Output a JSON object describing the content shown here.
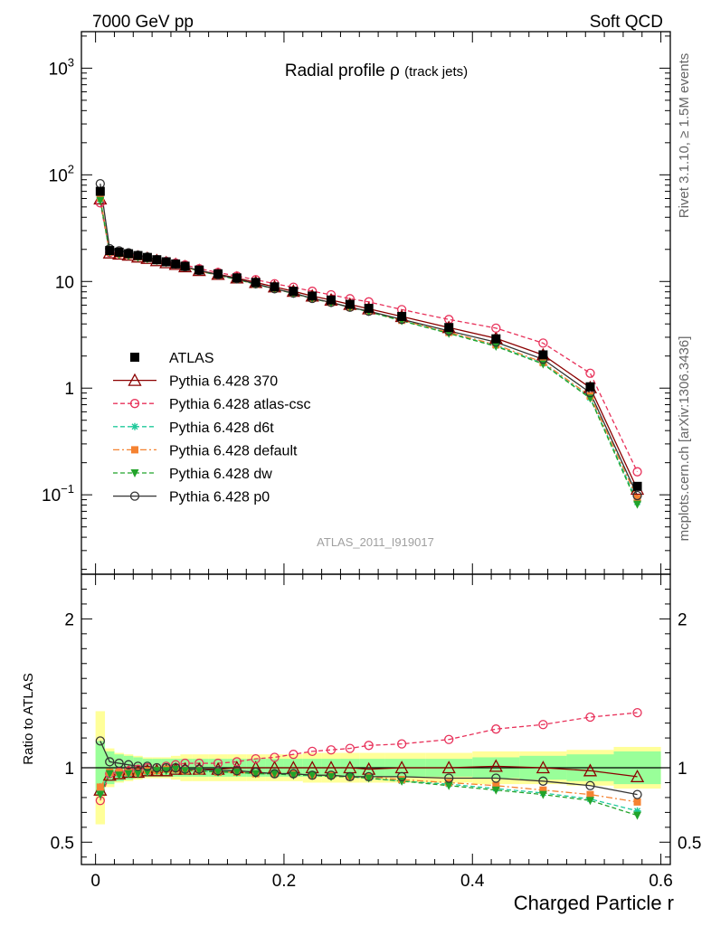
{
  "header": {
    "left": "7000 GeV pp",
    "right": "Soft QCD"
  },
  "side_labels": {
    "rivet": "Rivet 3.1.10, ≥ 1.5M events",
    "mcplots": "mcplots.cern.ch [arXiv:1306.3436]"
  },
  "chart_data": [
    {
      "type": "line",
      "panel": "main",
      "title": "Radial profile",
      "title_symbol": "ρ",
      "title_suffix": "(track jets)",
      "watermark": "ATLAS_2011_I919017",
      "yscale": "log",
      "ylim": [
        0.018,
        2200
      ],
      "xlim": [
        -0.015,
        0.61
      ],
      "y_ticks": [
        {
          "value": 0.1,
          "base": "10",
          "exp": "−1"
        },
        {
          "value": 1,
          "label": "1"
        },
        {
          "value": 10,
          "label": "10"
        },
        {
          "value": 100,
          "base": "10",
          "exp": "2"
        },
        {
          "value": 1000,
          "base": "10",
          "exp": "3"
        }
      ],
      "legend_position": "left-lower",
      "x": [
        0.005,
        0.015,
        0.025,
        0.035,
        0.045,
        0.055,
        0.065,
        0.075,
        0.085,
        0.095,
        0.11,
        0.13,
        0.15,
        0.17,
        0.19,
        0.21,
        0.23,
        0.25,
        0.27,
        0.29,
        0.325,
        0.375,
        0.425,
        0.475,
        0.525,
        0.575
      ],
      "data": {
        "name": "ATLAS",
        "color": "#000000",
        "y": [
          70,
          19.5,
          18.8,
          18.2,
          17.5,
          16.8,
          16.0,
          15.3,
          14.6,
          13.9,
          12.8,
          11.8,
          10.8,
          9.8,
          8.9,
          8.1,
          7.3,
          6.7,
          6.1,
          5.6,
          4.7,
          3.7,
          2.9,
          2.05,
          1.03,
          0.12
        ],
        "err_total": [
          0.18,
          0.11,
          0.09,
          0.08,
          0.07,
          0.06,
          0.06,
          0.06,
          0.06,
          0.06,
          0.06,
          0.06,
          0.06,
          0.06,
          0.06,
          0.06,
          0.06,
          0.06,
          0.06,
          0.06,
          0.06,
          0.06,
          0.07,
          0.08,
          0.09,
          0.11
        ],
        "err_stat": [
          0.38,
          0.13,
          0.1,
          0.09,
          0.08,
          0.07,
          0.07,
          0.07,
          0.08,
          0.09,
          0.09,
          0.09,
          0.09,
          0.09,
          0.09,
          0.09,
          0.1,
          0.1,
          0.1,
          0.1,
          0.1,
          0.1,
          0.11,
          0.11,
          0.12,
          0.14
        ]
      },
      "series": [
        {
          "name": "Pythia 6.428 370",
          "color": "#8b0000",
          "style": "solid",
          "marker": "open-triangle",
          "ratio": [
            0.85,
            0.95,
            0.96,
            0.97,
            0.97,
            0.98,
            0.98,
            0.98,
            0.99,
            0.99,
            0.99,
            0.99,
            1.0,
            1.0,
            1.0,
            1.0,
            1.0,
            1.0,
            1.0,
            0.99,
            1.0,
            1.0,
            1.01,
            1.0,
            0.98,
            0.94
          ]
        },
        {
          "name": "Pythia 6.428 atlas-csc",
          "color": "#e8315a",
          "style": "dashed",
          "marker": "open-circle",
          "ratio": [
            0.78,
            0.96,
            0.97,
            0.98,
            0.99,
            1.0,
            1.0,
            1.01,
            1.02,
            1.03,
            1.03,
            1.03,
            1.04,
            1.06,
            1.07,
            1.09,
            1.11,
            1.12,
            1.13,
            1.15,
            1.16,
            1.19,
            1.26,
            1.29,
            1.34,
            1.37
          ]
        },
        {
          "name": "Pythia 6.428 d6t",
          "color": "#1ec99a",
          "style": "dashed",
          "marker": "star",
          "ratio": [
            0.84,
            0.97,
            0.96,
            0.96,
            0.97,
            0.97,
            0.98,
            0.99,
            0.99,
            0.98,
            0.98,
            0.97,
            0.97,
            0.96,
            0.96,
            0.96,
            0.95,
            0.95,
            0.94,
            0.93,
            0.91,
            0.89,
            0.86,
            0.83,
            0.79,
            0.71
          ]
        },
        {
          "name": "Pythia 6.428 default",
          "color": "#f58231",
          "style": "dashdot",
          "marker": "filled-square",
          "ratio": [
            0.87,
            0.97,
            0.97,
            0.97,
            0.97,
            0.98,
            0.98,
            0.99,
            0.99,
            0.98,
            0.98,
            0.97,
            0.97,
            0.96,
            0.96,
            0.96,
            0.95,
            0.95,
            0.94,
            0.94,
            0.92,
            0.9,
            0.88,
            0.85,
            0.82,
            0.77
          ]
        },
        {
          "name": "Pythia 6.428 dw",
          "color": "#22a32a",
          "style": "dashed",
          "marker": "filled-triangle-down",
          "ratio": [
            0.82,
            0.96,
            0.95,
            0.96,
            0.96,
            0.97,
            0.98,
            0.98,
            0.99,
            0.98,
            0.98,
            0.97,
            0.97,
            0.96,
            0.96,
            0.95,
            0.95,
            0.94,
            0.94,
            0.93,
            0.91,
            0.88,
            0.85,
            0.82,
            0.78,
            0.68
          ]
        },
        {
          "name": "Pythia 6.428 p0",
          "color": "#333333",
          "style": "solid",
          "marker": "open-circle",
          "ratio": [
            1.18,
            1.04,
            1.03,
            1.02,
            1.01,
            1.01,
            1.0,
            1.0,
            1.0,
            0.99,
            0.99,
            0.98,
            0.98,
            0.97,
            0.96,
            0.96,
            0.95,
            0.95,
            0.94,
            0.94,
            0.94,
            0.93,
            0.93,
            0.91,
            0.88,
            0.82
          ]
        }
      ]
    },
    {
      "type": "line",
      "panel": "ratio",
      "ylabel": "Ratio to ATLAS",
      "xlabel": "Charged Particle r",
      "ylim": [
        0.35,
        2.3
      ],
      "xlim": [
        -0.015,
        0.61
      ],
      "y_ticks": [
        {
          "value": 0.5,
          "label": "0.5"
        },
        {
          "value": 1,
          "label": "1"
        },
        {
          "value": 2,
          "label": "2"
        }
      ],
      "x_ticks": [
        {
          "value": 0,
          "label": "0"
        },
        {
          "value": 0.2,
          "label": "0.2"
        },
        {
          "value": 0.4,
          "label": "0.4"
        },
        {
          "value": 0.6,
          "label": "0.6"
        }
      ]
    }
  ]
}
